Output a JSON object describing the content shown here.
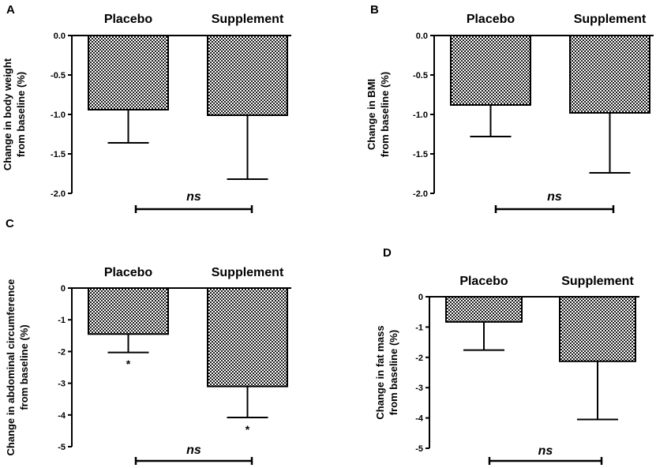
{
  "chart_data": [
    {
      "id": "A",
      "panel_label": "A",
      "type": "bar",
      "categories": [
        "Placebo",
        "Supplement"
      ],
      "values": [
        -0.94,
        -1.01
      ],
      "error_lower": [
        -1.36,
        -1.82
      ],
      "ylabel_lines": [
        "Change in body weight",
        "from baseline (%)"
      ],
      "ylim": [
        -2.0,
        0.0
      ],
      "yticks": [
        0.0,
        -0.5,
        -1.0,
        -1.5,
        -2.0
      ],
      "ytick_labels": [
        "0.0",
        "-0.5",
        "-1.0",
        "-1.5",
        "-2.0"
      ],
      "significance": "ns",
      "bar_markers": [
        "",
        ""
      ]
    },
    {
      "id": "B",
      "panel_label": "B",
      "type": "bar",
      "categories": [
        "Placebo",
        "Supplement"
      ],
      "values": [
        -0.88,
        -0.98
      ],
      "error_lower": [
        -1.28,
        -1.74
      ],
      "ylabel_lines": [
        "Change in BMI",
        "from baseline (%)"
      ],
      "ylim": [
        -2.0,
        0.0
      ],
      "yticks": [
        0.0,
        -0.5,
        -1.0,
        -1.5,
        -2.0
      ],
      "ytick_labels": [
        "0.0",
        "-0.5",
        "-1.0",
        "-1.5",
        "-2.0"
      ],
      "significance": "ns",
      "bar_markers": [
        "",
        ""
      ]
    },
    {
      "id": "C",
      "panel_label": "C",
      "type": "bar",
      "categories": [
        "Placebo",
        "Supplement"
      ],
      "values": [
        -1.45,
        -3.1
      ],
      "error_lower": [
        -2.03,
        -4.08
      ],
      "ylabel_lines": [
        "Change in abdominal circumference",
        "from baseline (%)"
      ],
      "ylim": [
        -5,
        0
      ],
      "yticks": [
        0,
        -1,
        -2,
        -3,
        -4,
        -5
      ],
      "ytick_labels": [
        "0",
        "-1",
        "-2",
        "-3",
        "-4",
        "-5"
      ],
      "significance": "ns",
      "bar_markers": [
        "*",
        "*"
      ]
    },
    {
      "id": "D",
      "panel_label": "D",
      "type": "bar",
      "categories": [
        "Placebo",
        "Supplement"
      ],
      "values": [
        -0.83,
        -2.13
      ],
      "error_lower": [
        -1.76,
        -4.05
      ],
      "ylabel_lines": [
        "Change in fat mass",
        "from baseline (%)"
      ],
      "ylim": [
        -5,
        0
      ],
      "yticks": [
        0,
        -1,
        -2,
        -3,
        -4,
        -5
      ],
      "ytick_labels": [
        "0",
        "-1",
        "-2",
        "-3",
        "-4",
        "-5"
      ],
      "significance": "ns",
      "bar_markers": [
        "",
        ""
      ]
    }
  ]
}
